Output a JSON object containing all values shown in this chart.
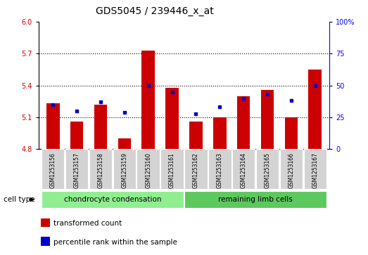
{
  "title": "GDS5045 / 239446_x_at",
  "samples": [
    "GSM1253156",
    "GSM1253157",
    "GSM1253158",
    "GSM1253159",
    "GSM1253160",
    "GSM1253161",
    "GSM1253162",
    "GSM1253163",
    "GSM1253164",
    "GSM1253165",
    "GSM1253166",
    "GSM1253167"
  ],
  "transformed_count": [
    5.23,
    5.06,
    5.22,
    4.9,
    5.73,
    5.38,
    5.06,
    5.1,
    5.3,
    5.36,
    5.1,
    5.55
  ],
  "percentile_rank": [
    35,
    30,
    37,
    29,
    50,
    45,
    28,
    33,
    40,
    43,
    38,
    50
  ],
  "bar_color": "#CC0000",
  "dot_color": "#0000CC",
  "ylim_left": [
    4.8,
    6.0
  ],
  "ylim_right": [
    0,
    100
  ],
  "yticks_left": [
    4.8,
    5.1,
    5.4,
    5.7,
    6.0
  ],
  "yticks_right": [
    0,
    25,
    50,
    75,
    100
  ],
  "ytick_labels_right": [
    "0",
    "25",
    "50",
    "75",
    "100%"
  ],
  "grid_lines": [
    5.1,
    5.4,
    5.7
  ],
  "group1_label": "chondrocyte condensation",
  "group1_indices": [
    0,
    1,
    2,
    3,
    4,
    5
  ],
  "group2_label": "remaining limb cells",
  "group2_indices": [
    6,
    7,
    8,
    9,
    10,
    11
  ],
  "group1_color": "#90EE90",
  "group2_color": "#5DC85D",
  "cell_type_label": "cell type",
  "legend_bar_label": "transformed count",
  "legend_dot_label": "percentile rank within the sample",
  "bar_width": 0.55,
  "tick_bg_color": "#D3D3D3",
  "title_fontsize": 10,
  "tick_fontsize": 7,
  "label_fontsize": 7.5
}
